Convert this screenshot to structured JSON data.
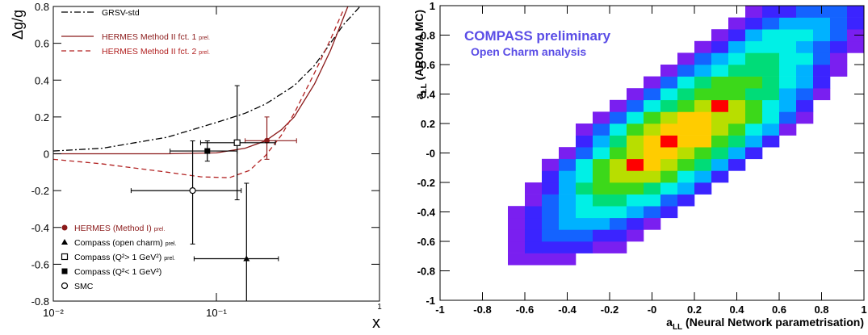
{
  "chart_data": [
    {
      "type": "line",
      "ylabel": "Δg/g",
      "xlabel": "x",
      "xlog": true,
      "xlim": [
        0.01,
        1
      ],
      "ylim": [
        -0.8,
        0.8
      ],
      "xticks": [
        {
          "value": 0.01,
          "label": "10⁻²"
        },
        {
          "value": 0.1,
          "label": "10⁻¹"
        },
        1
      ],
      "yticks": [
        -0.8,
        -0.6,
        -0.4,
        -0.2,
        0,
        0.2,
        0.4,
        0.6,
        0.8
      ],
      "series": [
        {
          "name": "GRSV-std",
          "style": "dashdot",
          "color": "#000000",
          "x": [
            0.01,
            0.02,
            0.05,
            0.1,
            0.15,
            0.2,
            0.3,
            0.4,
            0.5,
            0.6,
            0.76
          ],
          "values": [
            0.015,
            0.03,
            0.09,
            0.17,
            0.22,
            0.27,
            0.37,
            0.48,
            0.6,
            0.7,
            0.8
          ]
        },
        {
          "name": "HERMES Method II fct. 1",
          "note": "prel.",
          "style": "solid",
          "color": "#8b1a1a",
          "x": [
            0.01,
            0.05,
            0.1,
            0.15,
            0.2,
            0.25,
            0.3,
            0.4,
            0.5,
            0.64
          ],
          "values": [
            0,
            0,
            0.005,
            0.03,
            0.07,
            0.13,
            0.2,
            0.38,
            0.56,
            0.8
          ]
        },
        {
          "name": "HERMES Method II fct. 2",
          "note": "prel.",
          "style": "dashed",
          "color": "#b22222",
          "x": [
            0.01,
            0.02,
            0.03,
            0.05,
            0.08,
            0.12,
            0.16,
            0.2,
            0.25,
            0.3,
            0.4,
            0.5,
            0.6
          ],
          "values": [
            -0.03,
            -0.055,
            -0.075,
            -0.1,
            -0.125,
            -0.13,
            -0.09,
            -0.01,
            0.1,
            0.22,
            0.44,
            0.62,
            0.78
          ]
        }
      ],
      "points": [
        {
          "name": "HERMES (Method I)",
          "note": "prel.",
          "marker": "filled-circle",
          "color": "#8b1a1a",
          "x": 0.204,
          "y": 0.071,
          "x_low": 0.15,
          "x_high": 0.31,
          "y_low": -0.03,
          "y_high": 0.2
        },
        {
          "name": "Compass (open charm)",
          "note": "prel.",
          "marker": "triangle",
          "color": "#000000",
          "x": 0.153,
          "y": -0.57,
          "x_low": 0.073,
          "x_high": 0.24,
          "y_low": -0.98,
          "y_high": -0.16
        },
        {
          "name": "Compass (Q²> 1 GeV²)",
          "note": "prel.",
          "marker": "open-square",
          "color": "#000000",
          "x": 0.134,
          "y": 0.06,
          "x_low": 0.08,
          "x_high": 0.23,
          "y_low": -0.25,
          "y_high": 0.37
        },
        {
          "name": "Compass (Q²< 1 GeV²)",
          "marker": "filled-square",
          "color": "#000000",
          "x": 0.088,
          "y": 0.015,
          "x_low": 0.052,
          "x_high": 0.134,
          "y_low": -0.04,
          "y_high": 0.07
        },
        {
          "name": "SMC",
          "marker": "open-circle",
          "color": "#000000",
          "x": 0.0715,
          "y": -0.2,
          "x_low": 0.03,
          "x_high": 0.142,
          "y_low": -0.49,
          "y_high": 0.07
        }
      ]
    },
    {
      "type": "heatmap",
      "annotations": [
        "COMPASS preliminary",
        "Open Charm analysis"
      ],
      "xlabel": {
        "text": "a",
        "sub": "LL",
        "rest": " (Neural Network parametrisation)"
      },
      "ylabel": {
        "text": "a",
        "sub": "LL",
        "rest": " (AROMA MC)"
      },
      "xlim": [
        -1,
        1
      ],
      "ylim": [
        -1,
        1
      ],
      "xticks": [
        -1,
        -0.8,
        -0.6,
        -0.4,
        -0.2,
        {
          "value": 0,
          "label": "-0"
        },
        0.2,
        0.4,
        0.6,
        0.8,
        1
      ],
      "yticks": [
        -1,
        -0.8,
        -0.6,
        -0.4,
        -0.2,
        {
          "value": 0,
          "label": "-0"
        },
        0.2,
        0.4,
        0.6,
        0.8,
        1
      ],
      "colors": [
        "#7a1ff0",
        "#3b24ff",
        "#1463ff",
        "#00b2ff",
        "#00f0e6",
        "#00dc78",
        "#3cd81a",
        "#b8de00",
        "#ffcc00",
        "#ff0000"
      ],
      "xbins": [
        -1,
        -0.92,
        -0.84,
        -0.76,
        -0.68,
        -0.6,
        -0.52,
        -0.44,
        -0.36,
        -0.28,
        -0.2,
        -0.12,
        -0.04,
        0.04,
        0.12,
        0.2,
        0.28,
        0.36,
        0.44,
        0.52,
        0.6,
        0.68,
        0.76,
        0.84,
        0.92,
        1
      ],
      "ybins": [
        -1,
        -0.92,
        -0.84,
        -0.76,
        -0.68,
        -0.6,
        -0.52,
        -0.44,
        -0.36,
        -0.28,
        -0.2,
        -0.12,
        -0.04,
        0.04,
        0.12,
        0.2,
        0.28,
        0.36,
        0.44,
        0.52,
        0.6,
        0.68,
        0.76,
        0.84,
        0.92,
        1
      ],
      "z": [
        [
          0,
          0,
          0,
          0,
          0,
          0,
          0,
          0,
          0,
          0,
          0,
          0,
          0,
          0,
          0,
          0,
          0,
          0,
          0,
          0,
          0,
          0,
          0,
          0,
          0
        ],
        [
          0,
          0,
          0,
          0,
          0,
          0,
          0,
          0,
          0,
          0,
          0,
          0,
          0,
          0,
          0,
          0,
          0,
          0,
          0,
          0,
          0,
          0,
          0,
          0,
          0
        ],
        [
          0,
          0,
          0,
          0,
          0,
          0,
          0,
          0,
          0,
          0,
          0,
          0,
          0,
          0,
          0,
          0,
          0,
          0,
          0,
          0,
          0,
          0,
          0,
          0,
          0
        ],
        [
          0,
          0,
          0,
          0,
          1,
          1,
          1,
          1,
          0,
          0,
          0,
          0,
          0,
          0,
          0,
          0,
          0,
          0,
          0,
          0,
          0,
          0,
          0,
          0,
          0
        ],
        [
          0,
          0,
          0,
          0,
          1,
          2,
          2,
          2,
          2,
          1,
          1,
          0,
          0,
          0,
          0,
          0,
          0,
          0,
          0,
          0,
          0,
          0,
          0,
          0,
          0
        ],
        [
          0,
          0,
          0,
          0,
          1,
          2,
          3,
          3,
          3,
          2,
          2,
          1,
          0,
          0,
          0,
          0,
          0,
          0,
          0,
          0,
          0,
          0,
          0,
          0,
          0
        ],
        [
          0,
          0,
          0,
          0,
          1,
          2,
          3,
          4,
          4,
          4,
          3,
          2,
          1,
          0,
          0,
          0,
          0,
          0,
          0,
          0,
          0,
          0,
          0,
          0,
          0
        ],
        [
          0,
          0,
          0,
          0,
          1,
          2,
          3,
          4,
          5,
          5,
          5,
          4,
          3,
          2,
          0,
          0,
          0,
          0,
          0,
          0,
          0,
          0,
          0,
          0,
          0
        ],
        [
          0,
          0,
          0,
          0,
          0,
          1,
          3,
          4,
          5,
          6,
          6,
          5,
          5,
          3,
          2,
          0,
          0,
          0,
          0,
          0,
          0,
          0,
          0,
          0,
          0
        ],
        [
          0,
          0,
          0,
          0,
          0,
          1,
          2,
          4,
          6,
          7,
          7,
          7,
          6,
          5,
          4,
          2,
          0,
          0,
          0,
          0,
          0,
          0,
          0,
          0,
          0
        ],
        [
          0,
          0,
          0,
          0,
          0,
          0,
          2,
          4,
          5,
          7,
          8,
          8,
          8,
          7,
          5,
          4,
          2,
          0,
          0,
          0,
          0,
          0,
          0,
          0,
          0
        ],
        [
          0,
          0,
          0,
          0,
          0,
          0,
          1,
          3,
          5,
          7,
          8,
          10,
          9,
          8,
          7,
          6,
          4,
          2,
          0,
          0,
          0,
          0,
          0,
          0,
          0
        ],
        [
          0,
          0,
          0,
          0,
          0,
          0,
          0,
          1,
          3,
          5,
          7,
          8,
          9,
          9,
          8,
          7,
          6,
          4,
          2,
          0,
          0,
          0,
          0,
          0,
          0
        ],
        [
          0,
          0,
          0,
          0,
          0,
          0,
          0,
          0,
          2,
          4,
          6,
          8,
          9,
          10,
          9,
          9,
          7,
          6,
          4,
          2,
          0,
          0,
          0,
          0,
          0
        ],
        [
          0,
          0,
          0,
          0,
          0,
          0,
          0,
          0,
          1,
          3,
          5,
          7,
          8,
          9,
          9,
          9,
          8,
          7,
          5,
          4,
          1,
          0,
          0,
          0,
          0
        ],
        [
          0,
          0,
          0,
          0,
          0,
          0,
          0,
          0,
          0,
          1,
          3,
          5,
          7,
          8,
          9,
          9,
          8,
          8,
          7,
          5,
          3,
          1,
          0,
          0,
          0
        ],
        [
          0,
          0,
          0,
          0,
          0,
          0,
          0,
          0,
          0,
          0,
          1,
          3,
          5,
          6,
          7,
          8,
          10,
          8,
          7,
          5,
          4,
          2,
          0,
          0,
          0
        ],
        [
          0,
          0,
          0,
          0,
          0,
          0,
          0,
          0,
          0,
          0,
          0,
          1,
          3,
          5,
          6,
          7,
          7,
          7,
          6,
          6,
          4,
          3,
          1,
          0,
          0
        ],
        [
          0,
          0,
          0,
          0,
          0,
          0,
          0,
          0,
          0,
          0,
          0,
          0,
          1,
          3,
          5,
          6,
          7,
          7,
          7,
          6,
          5,
          4,
          2,
          0,
          0
        ],
        [
          0,
          0,
          0,
          0,
          0,
          0,
          0,
          0,
          0,
          0,
          0,
          0,
          0,
          1,
          3,
          4,
          5,
          6,
          6,
          6,
          5,
          4,
          2,
          1,
          0
        ],
        [
          0,
          0,
          0,
          0,
          0,
          0,
          0,
          0,
          0,
          0,
          0,
          0,
          0,
          0,
          1,
          3,
          4,
          5,
          6,
          6,
          5,
          5,
          3,
          1,
          0
        ],
        [
          0,
          0,
          0,
          0,
          0,
          0,
          0,
          0,
          0,
          0,
          0,
          0,
          0,
          0,
          0,
          1,
          2,
          4,
          5,
          5,
          5,
          4,
          3,
          2,
          1
        ],
        [
          0,
          0,
          0,
          0,
          0,
          0,
          0,
          0,
          0,
          0,
          0,
          0,
          0,
          0,
          0,
          0,
          1,
          2,
          4,
          5,
          5,
          5,
          4,
          3,
          1
        ],
        [
          0,
          0,
          0,
          0,
          0,
          0,
          0,
          0,
          0,
          0,
          0,
          0,
          0,
          0,
          0,
          0,
          0,
          1,
          2,
          3,
          4,
          4,
          4,
          3,
          2
        ],
        [
          0,
          0,
          0,
          0,
          0,
          0,
          0,
          0,
          0,
          0,
          0,
          0,
          0,
          0,
          0,
          0,
          0,
          0,
          1,
          2,
          2,
          3,
          3,
          3,
          2
        ]
      ]
    }
  ]
}
